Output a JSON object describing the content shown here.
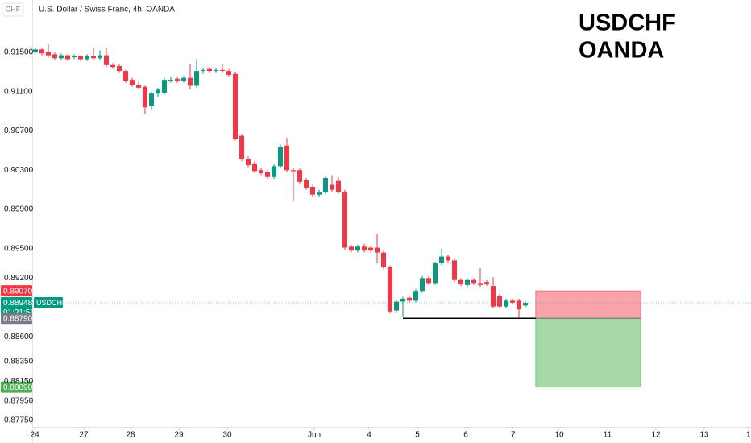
{
  "chart_data": {
    "type": "candlestick",
    "title": "U.S. Dollar / Swiss Franc, 4h, OANDA",
    "currency": "CHF",
    "annotation": [
      "USDCHF",
      "OANDA"
    ],
    "up_color": "#089981",
    "down_color": "#f23645",
    "candles": [
      [
        0.915,
        0.9154,
        0.9149,
        0.9153
      ],
      [
        0.9153,
        0.9155,
        0.9147,
        0.9149
      ],
      [
        0.915,
        0.9158,
        0.9145,
        0.9147
      ],
      [
        0.9148,
        0.915,
        0.9142,
        0.9144
      ],
      [
        0.9144,
        0.9149,
        0.9142,
        0.9147
      ],
      [
        0.9147,
        0.9148,
        0.9141,
        0.9143
      ],
      [
        0.9145,
        0.9148,
        0.9143,
        0.9146
      ],
      [
        0.9146,
        0.9147,
        0.9141,
        0.9143
      ],
      [
        0.9143,
        0.9148,
        0.9141,
        0.9146
      ],
      [
        0.9146,
        0.9155,
        0.9142,
        0.9144
      ],
      [
        0.9144,
        0.9152,
        0.9142,
        0.9147
      ],
      [
        0.9147,
        0.9155,
        0.9135,
        0.9137
      ],
      [
        0.9137,
        0.9139,
        0.9133,
        0.9135
      ],
      [
        0.9136,
        0.9138,
        0.9129,
        0.9131
      ],
      [
        0.9131,
        0.9132,
        0.9119,
        0.9121
      ],
      [
        0.9122,
        0.9124,
        0.9115,
        0.9117
      ],
      [
        0.9117,
        0.912,
        0.9112,
        0.9114
      ],
      [
        0.9115,
        0.9116,
        0.9087,
        0.9094
      ],
      [
        0.9095,
        0.911,
        0.9092,
        0.9108
      ],
      [
        0.9108,
        0.9114,
        0.9105,
        0.9112
      ],
      [
        0.9109,
        0.9124,
        0.9107,
        0.9122
      ],
      [
        0.9121,
        0.9125,
        0.9119,
        0.9122
      ],
      [
        0.9123,
        0.9125,
        0.9119,
        0.9121
      ],
      [
        0.9121,
        0.9126,
        0.9119,
        0.9124
      ],
      [
        0.9124,
        0.9138,
        0.9112,
        0.9116
      ],
      [
        0.9116,
        0.9143,
        0.9114,
        0.9131
      ],
      [
        0.9131,
        0.9134,
        0.9128,
        0.9132
      ],
      [
        0.9133,
        0.9135,
        0.9129,
        0.9131
      ],
      [
        0.9131,
        0.9134,
        0.9129,
        0.9132
      ],
      [
        0.9132,
        0.9138,
        0.9129,
        0.9131
      ],
      [
        0.9131,
        0.9133,
        0.9125,
        0.9127
      ],
      [
        0.9128,
        0.913,
        0.906,
        0.9062
      ],
      [
        0.9065,
        0.9067,
        0.9039,
        0.9041
      ],
      [
        0.9041,
        0.9044,
        0.9033,
        0.9035
      ],
      [
        0.9037,
        0.9039,
        0.9027,
        0.9029
      ],
      [
        0.903,
        0.9032,
        0.9025,
        0.9027
      ],
      [
        0.9028,
        0.903,
        0.9021,
        0.9023
      ],
      [
        0.9023,
        0.9036,
        0.9021,
        0.9034
      ],
      [
        0.9034,
        0.9056,
        0.9032,
        0.9054
      ],
      [
        0.9055,
        0.9063,
        0.9028,
        0.903
      ],
      [
        0.903,
        0.9033,
        0.8999,
        0.9029
      ],
      [
        0.903,
        0.9032,
        0.9016,
        0.9018
      ],
      [
        0.902,
        0.9022,
        0.901,
        0.9012
      ],
      [
        0.9013,
        0.9015,
        0.9003,
        0.9005
      ],
      [
        0.9005,
        0.901,
        0.9003,
        0.9008
      ],
      [
        0.9008,
        0.9024,
        0.9006,
        0.9022
      ],
      [
        0.9015,
        0.9025,
        0.9008,
        0.901
      ],
      [
        0.9019,
        0.9023,
        0.9006,
        0.9008
      ],
      [
        0.9008,
        0.901,
        0.8949,
        0.8951
      ],
      [
        0.8952,
        0.8954,
        0.8946,
        0.8948
      ],
      [
        0.8948,
        0.8954,
        0.8946,
        0.8952
      ],
      [
        0.8952,
        0.8955,
        0.8946,
        0.8948
      ],
      [
        0.8951,
        0.8953,
        0.8946,
        0.8948
      ],
      [
        0.8951,
        0.8965,
        0.8935,
        0.8946
      ],
      [
        0.8946,
        0.8948,
        0.8929,
        0.8931
      ],
      [
        0.8931,
        0.8933,
        0.8884,
        0.8886
      ],
      [
        0.8887,
        0.8898,
        0.8885,
        0.8896
      ],
      [
        0.8896,
        0.8901,
        0.8881,
        0.8899
      ],
      [
        0.89,
        0.8902,
        0.8895,
        0.8897
      ],
      [
        0.8897,
        0.8909,
        0.8895,
        0.8907
      ],
      [
        0.8907,
        0.8922,
        0.8905,
        0.892
      ],
      [
        0.892,
        0.8922,
        0.8913,
        0.8915
      ],
      [
        0.8915,
        0.8937,
        0.8913,
        0.8935
      ],
      [
        0.8935,
        0.895,
        0.8933,
        0.8942
      ],
      [
        0.8942,
        0.8944,
        0.8936,
        0.8938
      ],
      [
        0.8938,
        0.894,
        0.8916,
        0.8918
      ],
      [
        0.8918,
        0.892,
        0.8912,
        0.8914
      ],
      [
        0.8913,
        0.892,
        0.8911,
        0.8918
      ],
      [
        0.8918,
        0.892,
        0.8913,
        0.8915
      ],
      [
        0.8915,
        0.893,
        0.8911,
        0.8913
      ],
      [
        0.8916,
        0.8918,
        0.8912,
        0.8914
      ],
      [
        0.8912,
        0.8921,
        0.8889,
        0.8891
      ],
      [
        0.8902,
        0.8904,
        0.8889,
        0.8891
      ],
      [
        0.8891,
        0.8899,
        0.8889,
        0.8897
      ],
      [
        0.8897,
        0.8899,
        0.8893,
        0.8895
      ],
      [
        0.8897,
        0.8899,
        0.888,
        0.8888
      ],
      [
        0.8892,
        0.8896,
        0.889,
        0.88948
      ]
    ],
    "xlim": [
      -0.5,
      111
    ],
    "xticks": [
      {
        "value": -0.1,
        "label": "24"
      },
      {
        "value": 7.5,
        "label": "27"
      },
      {
        "value": 14.75,
        "label": "28"
      },
      {
        "value": 22.25,
        "label": "29"
      },
      {
        "value": 29.75,
        "label": "30"
      },
      {
        "value": 43.25,
        "label": "Jun"
      },
      {
        "value": 51.75,
        "label": "4"
      },
      {
        "value": 59.25,
        "label": "5"
      },
      {
        "value": 66.75,
        "label": "6"
      },
      {
        "value": 74.1,
        "label": "7"
      },
      {
        "value": 81.25,
        "label": "10"
      },
      {
        "value": 88.75,
        "label": "11"
      },
      {
        "value": 96.25,
        "label": "12"
      },
      {
        "value": 103.75,
        "label": "13"
      },
      {
        "value": 110.6,
        "label": "1"
      }
    ],
    "ylim": [
      0.87685,
      0.92033
    ],
    "yticks": [
      {
        "value": 0.915,
        "label": "0.91500"
      },
      {
        "value": 0.911,
        "label": "0.91100"
      },
      {
        "value": 0.907,
        "label": "0.90700"
      },
      {
        "value": 0.903,
        "label": "0.90300"
      },
      {
        "value": 0.899,
        "label": "0.89900"
      },
      {
        "value": 0.895,
        "label": "0.89500"
      },
      {
        "value": 0.892,
        "label": "0.89200"
      },
      {
        "value": 0.886,
        "label": "0.88600"
      },
      {
        "value": 0.8835,
        "label": "0.88350"
      },
      {
        "value": 0.8815,
        "label": "0.88150"
      },
      {
        "value": 0.8795,
        "label": "0.87950"
      },
      {
        "value": 0.8775,
        "label": "0.87750"
      }
    ],
    "grid": false,
    "last_price": {
      "value": 0.88948,
      "label": "0.88948",
      "countdown": "01:21:56",
      "symbol": "USDCHF",
      "color": "#089981"
    },
    "position": {
      "start": 77.6,
      "end": 93.9,
      "stop": {
        "value": 0.8907,
        "label": "0.89070",
        "color": "#f23645"
      },
      "entry": {
        "value": 0.8879,
        "label": "0.88790",
        "color": "#787b86"
      },
      "target": {
        "value": 0.8809,
        "label": "0.88090",
        "color": "#4caf50"
      }
    },
    "support_line": {
      "start": 57,
      "end": 77.6,
      "value": 0.8879
    }
  }
}
